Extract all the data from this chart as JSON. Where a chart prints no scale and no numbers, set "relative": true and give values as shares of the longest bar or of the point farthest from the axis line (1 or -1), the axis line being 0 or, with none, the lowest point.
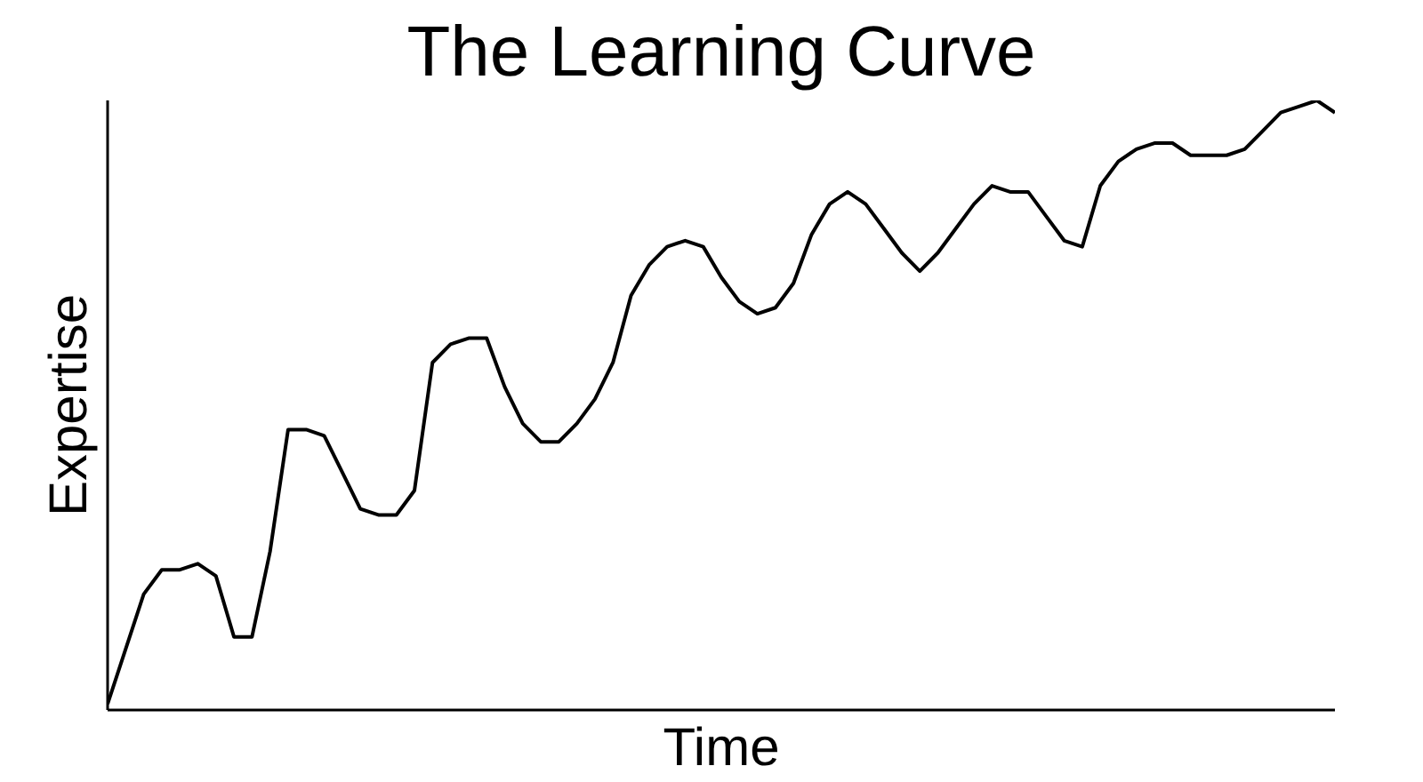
{
  "chart_data": {
    "type": "line",
    "title": "The Learning Curve",
    "xlabel": "Time",
    "ylabel": "Expertise",
    "relative": true,
    "categories": [
      null,
      null,
      null,
      null,
      null,
      null,
      null,
      null,
      null,
      null,
      null,
      null,
      null,
      null,
      null,
      null,
      null,
      null,
      null,
      null,
      null,
      null,
      null,
      null,
      null,
      null,
      null,
      null,
      null,
      null,
      null,
      null,
      null,
      null,
      null,
      null,
      null,
      null,
      null,
      null,
      null,
      null,
      null,
      null,
      null,
      null,
      null,
      null,
      null,
      null,
      null,
      null,
      null,
      null,
      null,
      null,
      null,
      null,
      null,
      null,
      null,
      null,
      null,
      null,
      null,
      null,
      null,
      null,
      null
    ],
    "series": [
      {
        "color": "#000000",
        "values": [
          0.01,
          0.1,
          0.19,
          0.23,
          0.23,
          0.24,
          0.22,
          0.12,
          0.12,
          0.26,
          0.46,
          0.46,
          0.45,
          0.39,
          0.33,
          0.32,
          0.32,
          0.36,
          0.57,
          0.6,
          0.61,
          0.61,
          0.53,
          0.47,
          0.44,
          0.44,
          0.47,
          0.51,
          0.57,
          0.68,
          0.73,
          0.76,
          0.77,
          0.76,
          0.71,
          0.67,
          0.65,
          0.66,
          0.7,
          0.78,
          0.83,
          0.85,
          0.83,
          0.79,
          0.75,
          0.72,
          0.75,
          0.79,
          0.83,
          0.86,
          0.85,
          0.85,
          0.81,
          0.77,
          0.76,
          0.86,
          0.9,
          0.92,
          0.93,
          0.93,
          0.91,
          0.91,
          0.91,
          0.92,
          0.95,
          0.98,
          0.99,
          1.0,
          0.98
        ]
      }
    ]
  }
}
